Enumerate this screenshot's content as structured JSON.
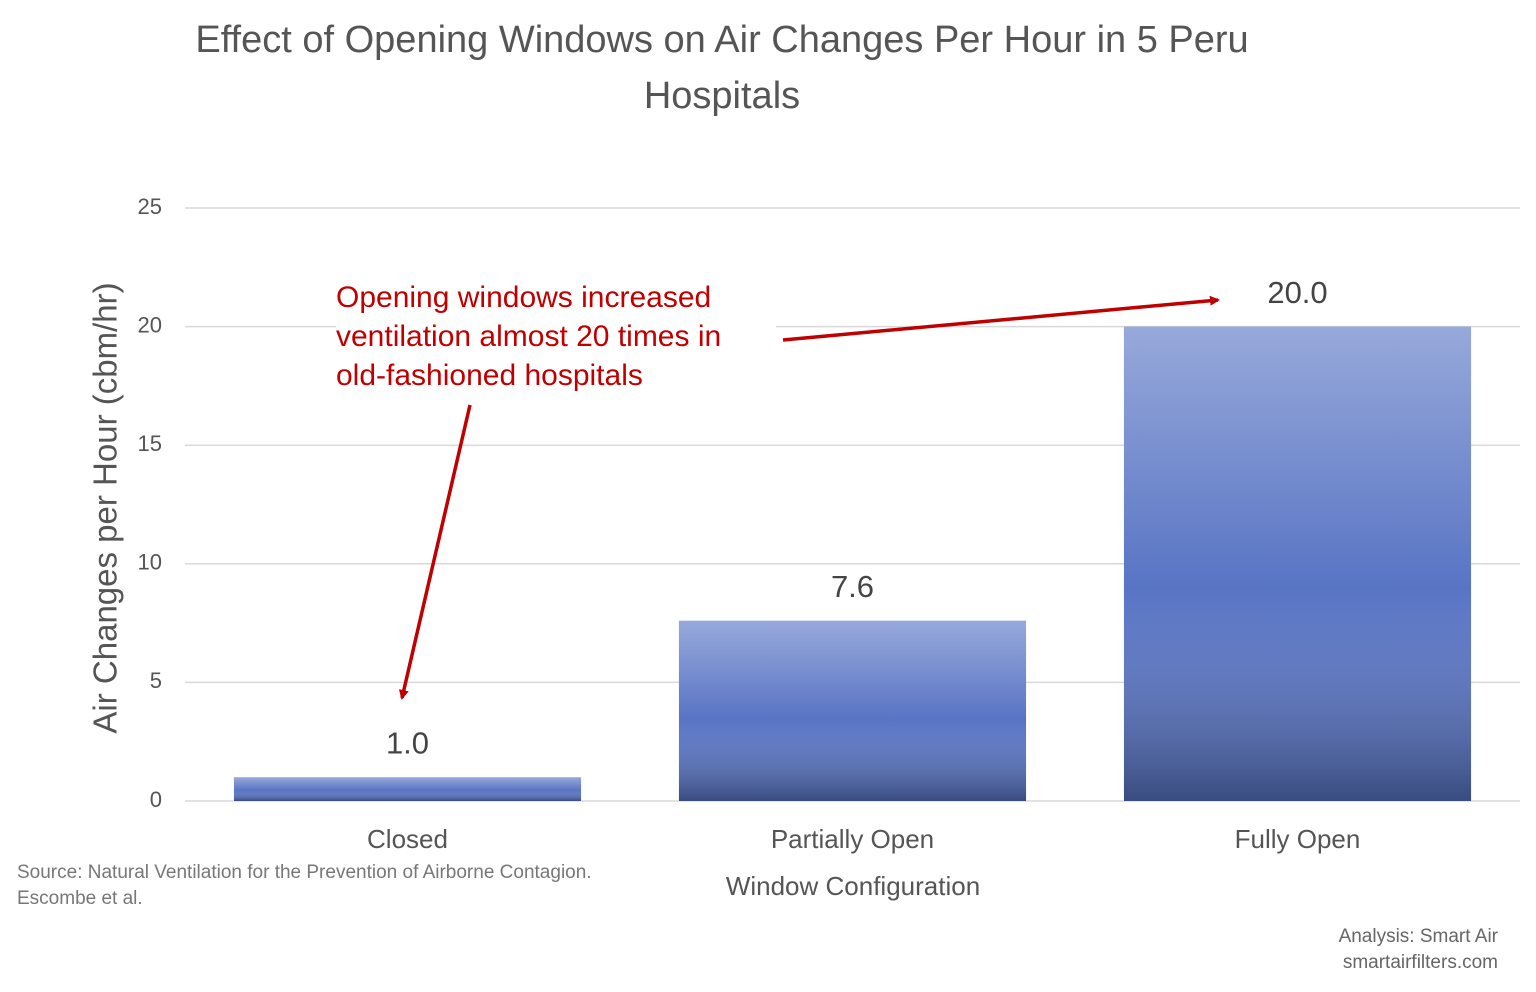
{
  "chart_data": {
    "type": "bar",
    "title": "Effect of Opening Windows on Air Changes Per Hour in 5 Peru Hospitals",
    "categories": [
      "Closed",
      "Partially Open",
      "Fully Open"
    ],
    "values": [
      1.0,
      7.6,
      20.0
    ],
    "value_labels": [
      "1.0",
      "7.6",
      "20.0"
    ],
    "color": "#5874c4",
    "ylim": [
      0,
      25
    ],
    "yticks": [
      0,
      5,
      10,
      15,
      20,
      25
    ],
    "grid": true,
    "y_label": "Air Changes per Hour (cbm/hr)",
    "x_label": "Window Configuration",
    "annotation": "Opening windows increased ventilation almost 20 times in old-fashioned hospitals",
    "source": "Source: Natural Ventilation for the Prevention of Airborne Contagion. Escombe et al.",
    "credits": [
      "Analysis: Smart Air",
      "smartairfilters.com"
    ]
  }
}
